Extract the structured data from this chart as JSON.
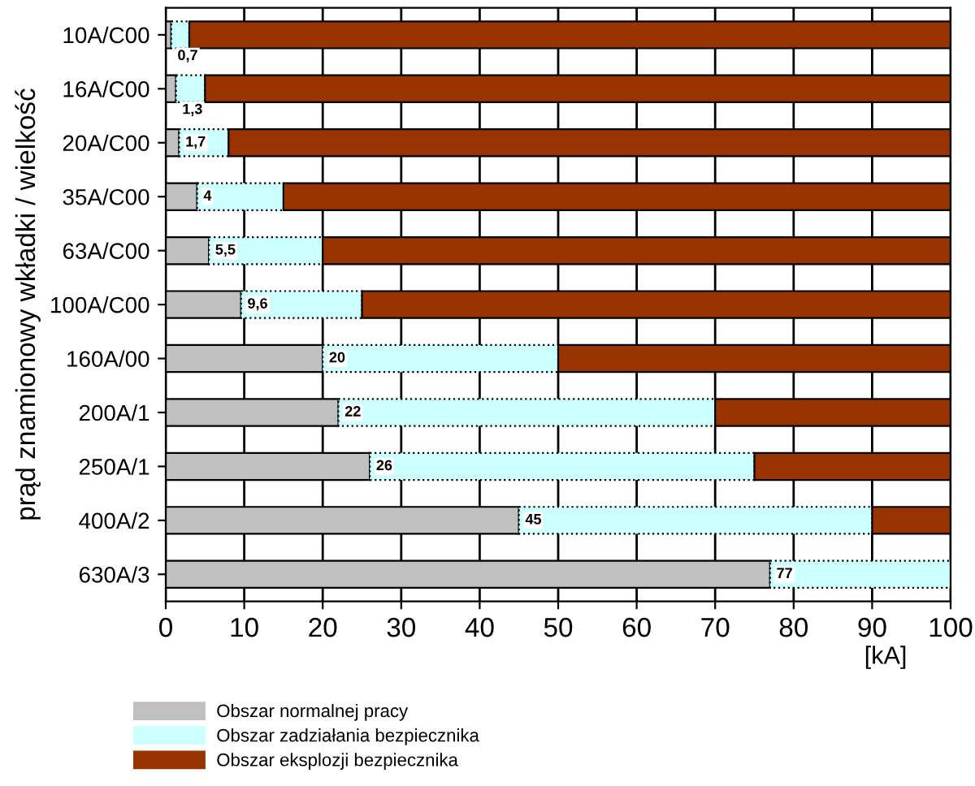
{
  "chart_data": {
    "type": "bar",
    "orientation": "horizontal",
    "stacked": true,
    "xlabel": "[kA]",
    "ylabel": "prąd znamionowy wkładki / wielkość",
    "categories": [
      "10A/C00",
      "16A/C00",
      "20A/C00",
      "35A/C00",
      "63A/C00",
      "100A/C00",
      "160A/00",
      "200A/1",
      "250A/1",
      "400A/2",
      "630A/3"
    ],
    "series": [
      {
        "name": "Obszar normalnej pracy",
        "color": "#c0c0c0",
        "values": [
          0.7,
          1.3,
          1.7,
          4,
          5.5,
          9.6,
          20,
          22,
          26,
          45,
          77
        ],
        "value_labels": [
          "0,7",
          "1,3",
          "1,7",
          "4",
          "5,5",
          "9,6",
          "20",
          "22",
          "26",
          "45",
          "77"
        ]
      },
      {
        "name": "Obszar zadziałania bezpiecznika",
        "color": "#ccffff",
        "line_style": "dotted",
        "values": [
          2.3,
          3.7,
          6.3,
          11,
          14.5,
          15.4,
          30,
          48,
          49,
          45,
          23
        ]
      },
      {
        "name": "Obszar eksplozji bezpiecznika",
        "color": "#993300",
        "values": [
          97,
          95,
          92,
          85,
          80,
          75,
          50,
          30,
          25,
          10,
          0
        ]
      }
    ],
    "xlim": [
      0,
      100
    ],
    "xticks": [
      0,
      10,
      20,
      30,
      40,
      50,
      60,
      70,
      80,
      90,
      100
    ],
    "grid": "x",
    "legend": "bottom"
  }
}
